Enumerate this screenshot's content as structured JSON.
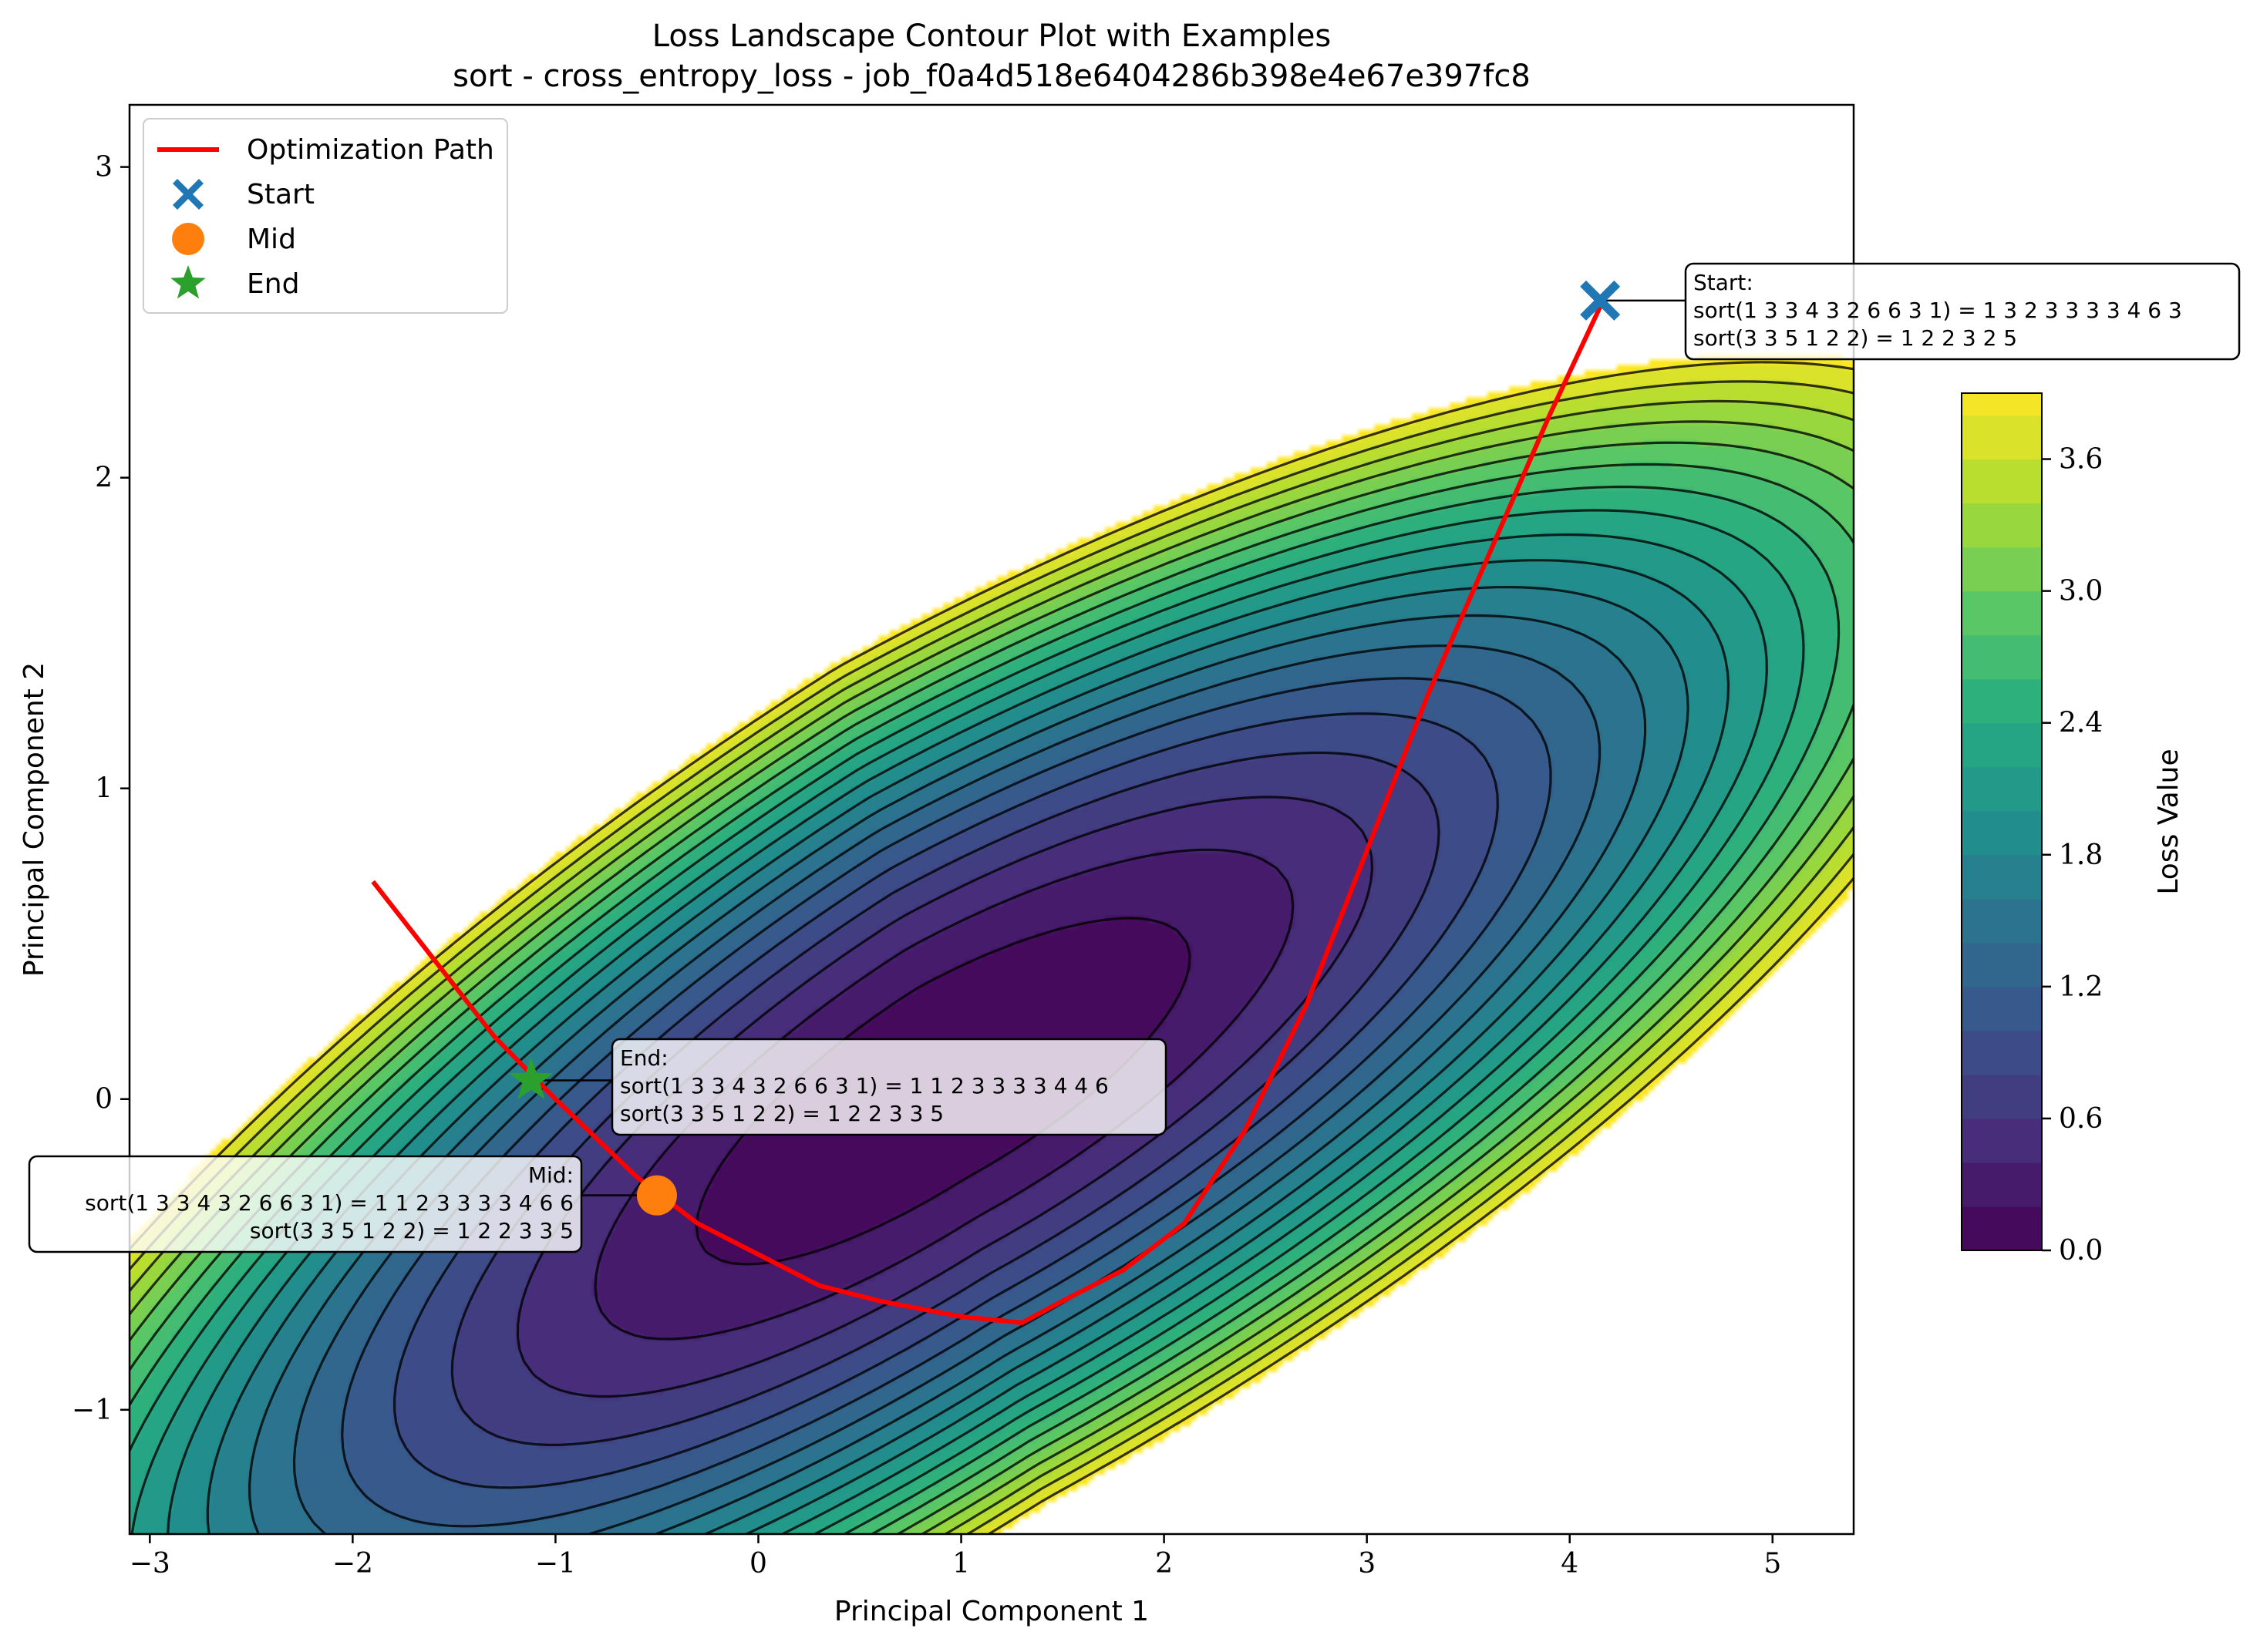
{
  "chart_data": {
    "type": "contour",
    "title": "Loss Landscape Contour Plot with Examples",
    "subtitle": "sort - cross_entropy_loss - job_f0a4d518e6404286b398e4e67e397fc8",
    "xlabel": "Principal Component 1",
    "ylabel": "Principal Component 2",
    "xlim": [
      -3.1,
      5.4
    ],
    "ylim": [
      -1.4,
      3.2
    ],
    "xticks": [
      -3,
      -2,
      -1,
      0,
      1,
      2,
      3,
      4,
      5
    ],
    "xtick_labels": [
      "−3",
      "−2",
      "−1",
      "0",
      "1",
      "2",
      "3",
      "4",
      "5"
    ],
    "yticks": [
      -1,
      0,
      1,
      2,
      3
    ],
    "ytick_labels": [
      "−1",
      "0",
      "1",
      "2",
      "3"
    ],
    "colorbar": {
      "label": "Loss Value",
      "range": [
        0.0,
        3.9
      ],
      "ticks": [
        0.0,
        0.6,
        1.2,
        1.8,
        2.4,
        3.0,
        3.6
      ],
      "tick_labels": [
        "0.0",
        "0.6",
        "1.2",
        "1.8",
        "2.4",
        "3.0",
        "3.6"
      ],
      "colormap": "viridis"
    },
    "levels": [
      0.2,
      0.4,
      0.6,
      0.8,
      1.0,
      1.2,
      1.4,
      1.6,
      1.8,
      2.0,
      2.2,
      2.4,
      2.6,
      2.8,
      3.0,
      3.2,
      3.4,
      3.6,
      3.8
    ],
    "landscape": {
      "basin_center": [
        0.9,
        0.05
      ],
      "valley_axis_angle_deg": 21,
      "masked_region": "upper-left (loss above max level)"
    },
    "path": {
      "name": "Optimization Path",
      "color": "#ff0000",
      "points": [
        [
          4.15,
          2.55
        ],
        [
          3.9,
          2.2
        ],
        [
          3.6,
          1.75
        ],
        [
          3.3,
          1.3
        ],
        [
          3.0,
          0.8
        ],
        [
          2.7,
          0.3
        ],
        [
          2.4,
          -0.1
        ],
        [
          2.1,
          -0.4
        ],
        [
          1.8,
          -0.55
        ],
        [
          1.5,
          -0.65
        ],
        [
          1.3,
          -0.72
        ],
        [
          1.0,
          -0.7
        ],
        [
          0.6,
          -0.65
        ],
        [
          0.3,
          -0.6
        ],
        [
          0.0,
          -0.5
        ],
        [
          -0.3,
          -0.4
        ],
        [
          -0.6,
          -0.25
        ],
        [
          -1.0,
          0.0
        ],
        [
          -1.3,
          0.2
        ],
        [
          -1.6,
          0.45
        ],
        [
          -1.9,
          0.7
        ]
      ]
    },
    "markers": [
      {
        "name": "Start",
        "x": 4.15,
        "y": 2.57,
        "symbol": "X",
        "color": "#1f77b4"
      },
      {
        "name": "Mid",
        "x": -0.5,
        "y": -0.31,
        "symbol": "circle",
        "color": "#ff7f0e"
      },
      {
        "name": "End",
        "x": -1.12,
        "y": 0.06,
        "symbol": "star",
        "color": "#2ca02c"
      }
    ],
    "legend": {
      "placement": "top-left",
      "entries": [
        "Optimization Path",
        "Start",
        "Mid",
        "End"
      ]
    },
    "annotations": [
      {
        "name": "Start",
        "lines": [
          "Start:",
          "sort(1 3 3 4 3 2 6 6 3 1) = 1 3 2 3 3 3 3 4 6 3",
          "sort(3 3 5 1 2 2) = 1 2 2 3 2 5"
        ]
      },
      {
        "name": "End",
        "lines": [
          "End:",
          "sort(1 3 3 4 3 2 6 6 3 1) = 1 1 2 3 3 3 3 4 4 6",
          "sort(3 3 5 1 2 2) = 1 2 2 3 3 5"
        ]
      },
      {
        "name": "Mid",
        "lines": [
          "Mid:",
          "sort(1 3 3 4 3 2 6 6 3 1) = 1 1 2 3 3 3 3 4 6 6",
          "sort(3 3 5 1 2 2) = 1 2 2 3 3 5"
        ]
      }
    ],
    "grid": false
  }
}
